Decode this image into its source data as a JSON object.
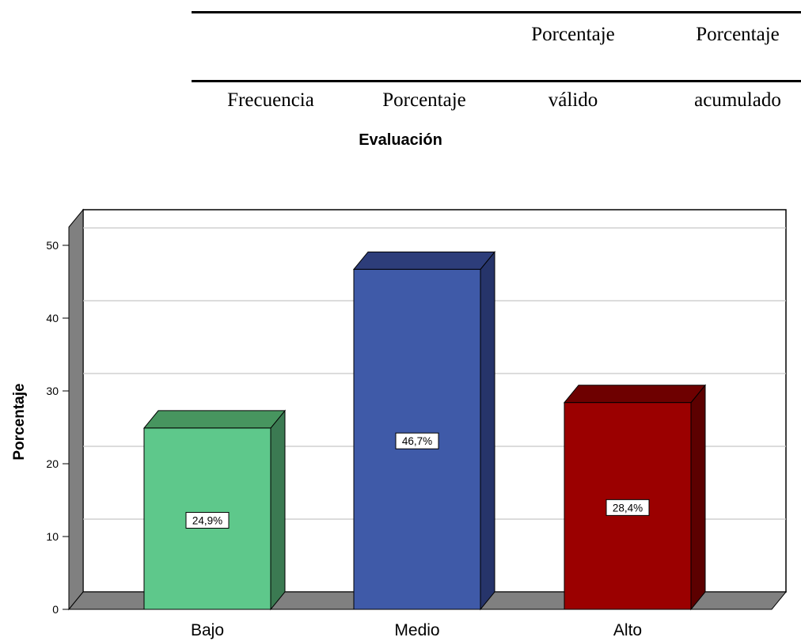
{
  "header": {
    "row1": [
      "",
      "",
      "Porcentaje",
      "Porcentaje"
    ],
    "row2": [
      "Frecuencia",
      "Porcentaje",
      "válido",
      "acumulado"
    ]
  },
  "chart_data": {
    "type": "bar",
    "title": "Evaluación",
    "xlabel": "",
    "ylabel": "Porcentaje",
    "categories": [
      "Bajo",
      "Medio",
      "Alto"
    ],
    "values": [
      24.9,
      46.7,
      28.4
    ],
    "value_labels": [
      "24,9%",
      "46,7%",
      "28,4%"
    ],
    "yticks": [
      0,
      10,
      20,
      30,
      40,
      50
    ],
    "ylim": [
      0,
      55
    ],
    "grid": true,
    "style": "3d",
    "colors": {
      "bars_front": [
        "#5ec88b",
        "#3f5aa8",
        "#9b0000"
      ],
      "bars_side": [
        "#3b7a52",
        "#26346a",
        "#5c0000"
      ],
      "bars_top": [
        "#47955f",
        "#2d3d7a",
        "#6e0000"
      ],
      "floor": "#808080",
      "wall": "#808080"
    }
  }
}
